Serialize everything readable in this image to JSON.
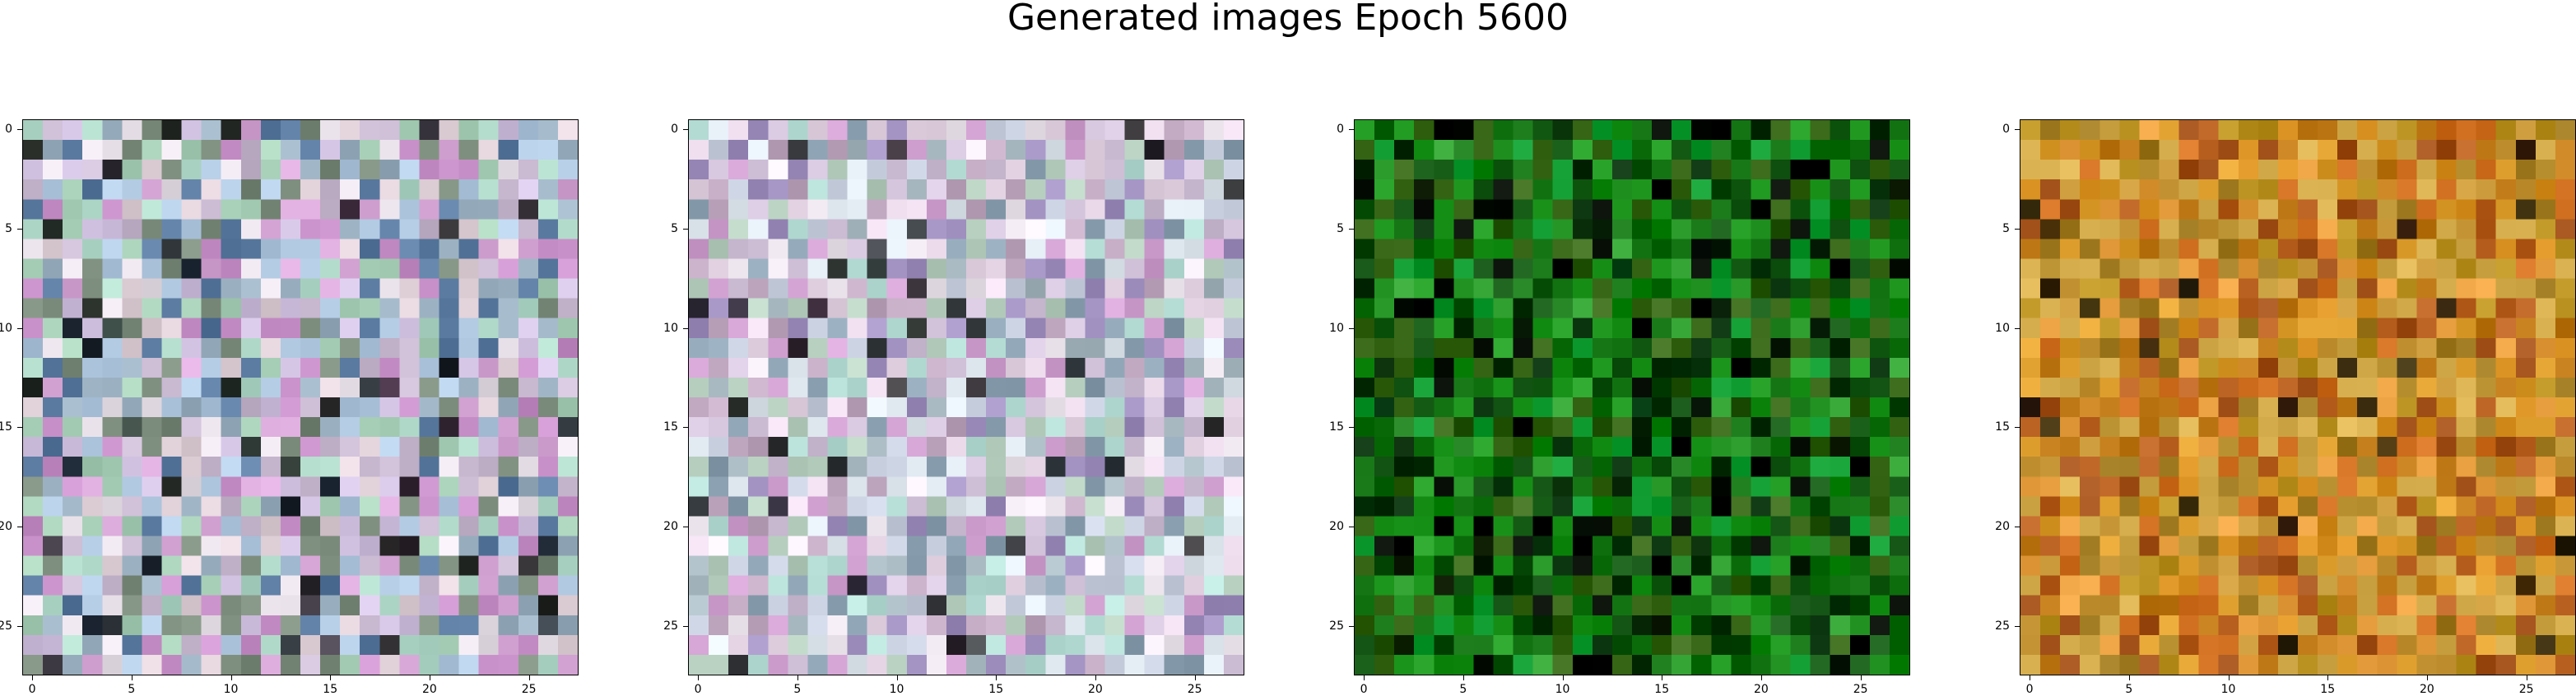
{
  "figure": {
    "title": "Generated images Epoch 5600"
  },
  "panels": [
    {
      "id": "sample-1",
      "palette": [
        "#c8b8d0",
        "#d0c0e0",
        "#b0d8c8",
        "#e0d0d8",
        "#9ab0c0",
        "#c890c8",
        "#a8d0b8",
        "#e8e0e8",
        "#7a8a7a",
        "#d8a8d8",
        "#5a7aa0",
        "#b0c8e0"
      ],
      "seed": 11,
      "dark_chance": 0.05
    },
    {
      "id": "sample-2",
      "palette": [
        "#d0c0d8",
        "#c8d0e0",
        "#b8e0d8",
        "#e8d8e8",
        "#a8b8c0",
        "#d0a0d0",
        "#e0e8f0",
        "#c0a8c0",
        "#8aa0b0",
        "#b8d0c0",
        "#a090c0",
        "#f0e8f0"
      ],
      "seed": 23,
      "dark_chance": 0.05
    },
    {
      "id": "sample-3",
      "palette": [
        "#0a6a0a",
        "#108810",
        "#0a4a0a",
        "#209a20",
        "#1a7a1a",
        "#3a6a1a",
        "#06300a",
        "#0f9a30",
        "#2a5a0a",
        "#000800",
        "#30a030",
        "#145a14"
      ],
      "seed": 37,
      "dark_chance": 0.06
    },
    {
      "id": "sample-4",
      "palette": [
        "#d89020",
        "#c07a18",
        "#e0a030",
        "#b89020",
        "#d07020",
        "#c8a040",
        "#a07a20",
        "#e8a040",
        "#b86020",
        "#c89838",
        "#d8b050",
        "#a05018"
      ],
      "seed": 51,
      "dark_chance": 0.03
    }
  ],
  "axes": {
    "x_ticks": [
      "0",
      "5",
      "10",
      "15",
      "20",
      "25"
    ],
    "y_ticks": [
      "0",
      "5",
      "10",
      "15",
      "20",
      "25"
    ]
  }
}
